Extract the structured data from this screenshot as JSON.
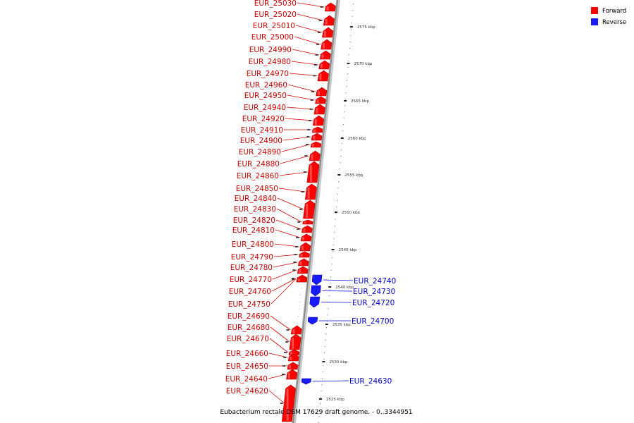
{
  "caption": "Eubacterium rectale DSM 17629 draft genome. - 0..3344951",
  "legend": [
    {
      "label": "Forward",
      "color": "#ff0000"
    },
    {
      "label": "Reverse",
      "color": "#1a1aff"
    }
  ],
  "scale": {
    "ticks": [
      {
        "label": "2575 kbp",
        "kbp": 2575
      },
      {
        "label": "2570 kbp",
        "kbp": 2570
      },
      {
        "label": "2565 kbp",
        "kbp": 2565
      },
      {
        "label": "2560 kbp",
        "kbp": 2560
      },
      {
        "label": "2555 kbp",
        "kbp": 2555
      },
      {
        "label": "2550 kbp",
        "kbp": 2550
      },
      {
        "label": "2545 kbp",
        "kbp": 2545
      },
      {
        "label": "2540 kbp",
        "kbp": 2540
      },
      {
        "label": "2535 kbp",
        "kbp": 2535
      },
      {
        "label": "2530 kbp",
        "kbp": 2530
      },
      {
        "label": "2525 kbp",
        "kbp": 2525
      }
    ]
  },
  "genes": {
    "forward": [
      "EUR_25030",
      "EUR_25020",
      "EUR_25010",
      "EUR_25000",
      "EUR_24990",
      "EUR_24980",
      "EUR_24970",
      "EUR_24960",
      "EUR_24950",
      "EUR_24940",
      "EUR_24920",
      "EUR_24910",
      "EUR_24900",
      "EUR_24890",
      "EUR_24880",
      "EUR_24860",
      "EUR_24850",
      "EUR_24840",
      "EUR_24830",
      "EUR_24820",
      "EUR_24810",
      "EUR_24800",
      "EUR_24790",
      "EUR_24780",
      "EUR_24770",
      "EUR_24760",
      "EUR_24750",
      "EUR_24690",
      "EUR_24680",
      "EUR_24670",
      "EUR_24660",
      "EUR_24650",
      "EUR_24640",
      "EUR_24620"
    ],
    "reverse": [
      "EUR_24740",
      "EUR_24730",
      "EUR_24720",
      "EUR_24700",
      "EUR_24630"
    ]
  }
}
